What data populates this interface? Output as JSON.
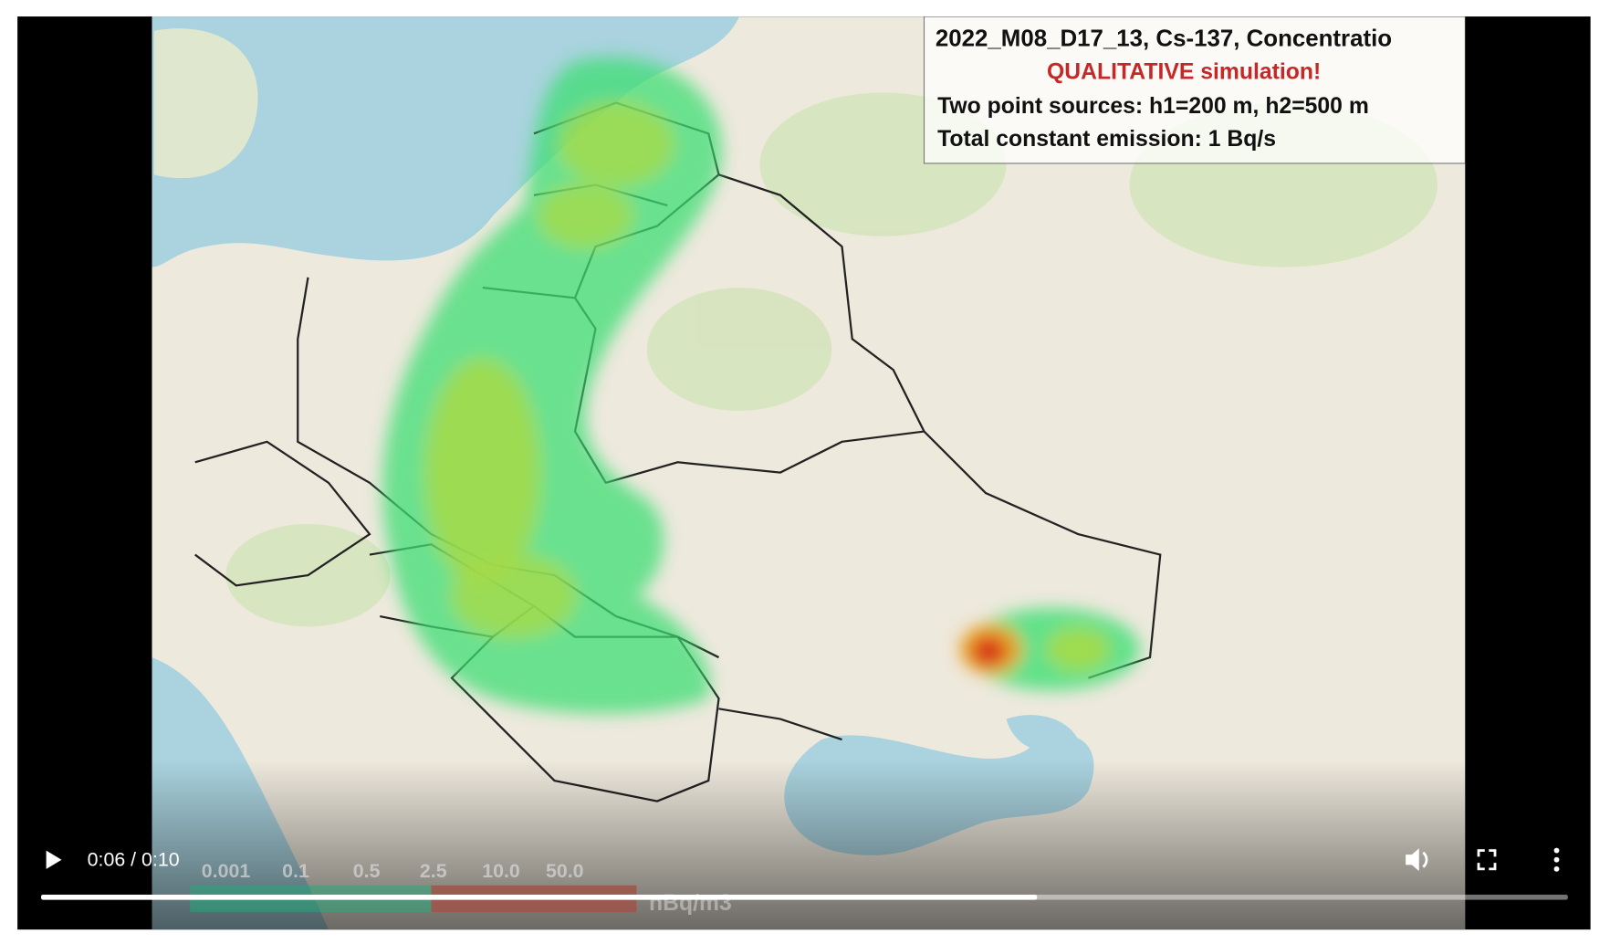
{
  "overlay": {
    "title": "2022_M08_D17_13,  Cs-137,  Concentratio",
    "warning": "QUALITATIVE simulation!",
    "sources": "Two point sources: h1=200 m, h2=500 m",
    "emission": "Total constant emission: 1 Bq/s",
    "legend": {
      "labels": [
        "0.001",
        "0.1",
        "0.5",
        "2.5",
        "10.0",
        "50.0"
      ],
      "unit": "nBq/m3"
    }
  },
  "player": {
    "time": "0:06 / 0:10"
  }
}
